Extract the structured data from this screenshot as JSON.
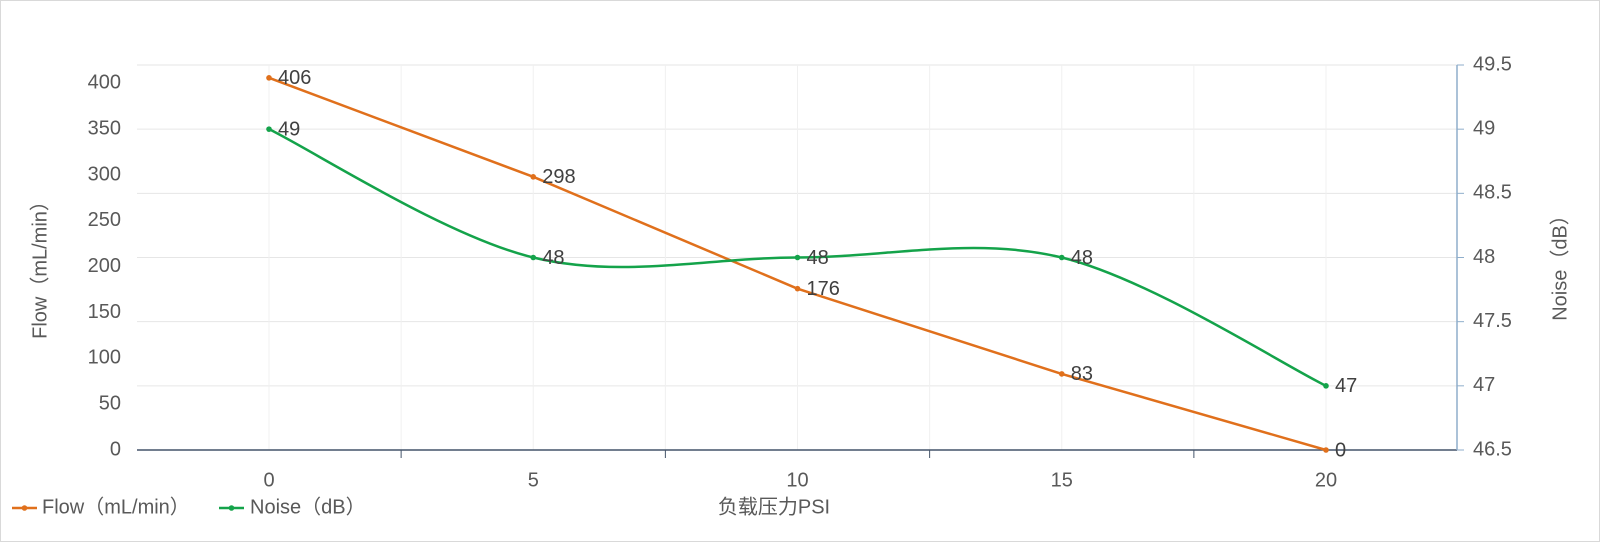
{
  "chart_data": {
    "type": "line",
    "title": "",
    "x": [
      0,
      5,
      10,
      15,
      20
    ],
    "xlabel": "负载压力PSI",
    "xticks": [
      "0",
      "5",
      "10",
      "15",
      "20"
    ],
    "series": [
      {
        "name": "Flow（mL/min）",
        "axis": "left",
        "color": "#e0701c",
        "values": [
          406,
          298,
          176,
          83,
          0
        ],
        "labels": [
          "406",
          "298",
          "176",
          "83",
          "0"
        ],
        "smooth": false
      },
      {
        "name": "Noise（dB）",
        "axis": "right",
        "color": "#14a34a",
        "values": [
          49,
          48,
          48,
          48,
          47
        ],
        "labels": [
          "49",
          "48",
          "48",
          "48",
          "47"
        ],
        "smooth": true
      }
    ],
    "y_left": {
      "label": "Flow（mL/min）",
      "min": 0,
      "max": 420,
      "ticks": [
        "0",
        "50",
        "100",
        "150",
        "200",
        "250",
        "300",
        "350",
        "400"
      ]
    },
    "y_right": {
      "label": "Noise（dB）",
      "min": 46.5,
      "max": 49.5,
      "ticks": [
        "46.5",
        "47",
        "47.5",
        "48",
        "48.5",
        "49",
        "49.5"
      ]
    },
    "grid": true,
    "legend": "bottom-left"
  }
}
